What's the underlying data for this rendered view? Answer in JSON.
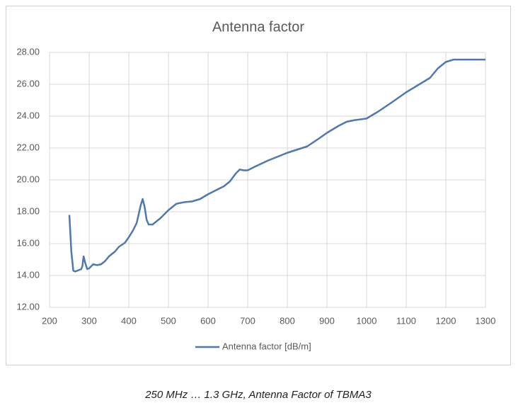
{
  "chart_data": {
    "type": "line",
    "title": "Antenna factor",
    "x": [
      250,
      255,
      260,
      265,
      275,
      280,
      283,
      286,
      290,
      295,
      300,
      310,
      320,
      330,
      340,
      350,
      365,
      375,
      390,
      400,
      410,
      420,
      430,
      435,
      440,
      445,
      450,
      460,
      480,
      500,
      520,
      540,
      560,
      580,
      600,
      620,
      640,
      655,
      670,
      680,
      690,
      700,
      720,
      750,
      800,
      850,
      880,
      900,
      930,
      950,
      970,
      1000,
      1030,
      1060,
      1100,
      1130,
      1160,
      1180,
      1200,
      1220,
      1250,
      1300
    ],
    "series": [
      {
        "name": "Antenna factor [dB/m]",
        "color": "#4e79b0",
        "values": [
          17.8,
          15.5,
          14.3,
          14.25,
          14.35,
          14.4,
          14.6,
          15.2,
          14.8,
          14.4,
          14.45,
          14.7,
          14.65,
          14.7,
          14.9,
          15.2,
          15.5,
          15.8,
          16.05,
          16.4,
          16.8,
          17.3,
          18.4,
          18.8,
          18.3,
          17.5,
          17.2,
          17.2,
          17.6,
          18.1,
          18.5,
          18.6,
          18.65,
          18.8,
          19.1,
          19.35,
          19.6,
          19.9,
          20.4,
          20.65,
          20.6,
          20.6,
          20.85,
          21.2,
          21.7,
          22.1,
          22.6,
          22.95,
          23.4,
          23.65,
          23.75,
          23.85,
          24.3,
          24.8,
          25.5,
          25.95,
          26.4,
          27.0,
          27.4,
          27.55,
          27.55,
          27.55
        ]
      }
    ],
    "xlim": [
      200,
      1300
    ],
    "xticks": [
      200,
      300,
      400,
      500,
      600,
      700,
      800,
      900,
      1000,
      1100,
      1200,
      1300
    ],
    "ylim": [
      12,
      28
    ],
    "yticks": [
      {
        "value": 12,
        "label": "12.00"
      },
      {
        "value": 14,
        "label": "14.00"
      },
      {
        "value": 16,
        "label": "16.00"
      },
      {
        "value": 18,
        "label": "18.00"
      },
      {
        "value": 20,
        "label": "20.00"
      },
      {
        "value": 22,
        "label": "22.00"
      },
      {
        "value": 24,
        "label": "24.00"
      },
      {
        "value": 26,
        "label": "26.00"
      },
      {
        "value": 28,
        "label": "28.00"
      }
    ],
    "grid": true,
    "legend": "bottom"
  },
  "caption": "250 MHz … 1.3 GHz, Antenna Factor of TBMA3"
}
